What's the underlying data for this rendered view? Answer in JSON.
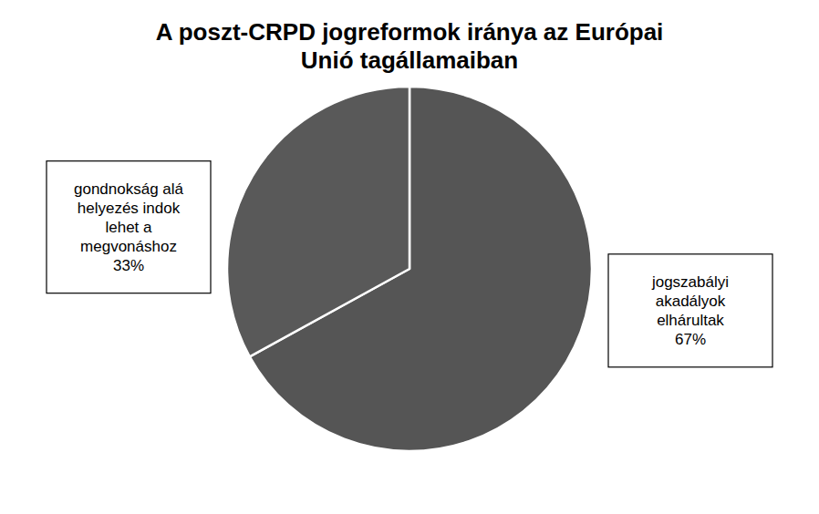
{
  "chart_data": {
    "type": "pie",
    "title": "A poszt-CRPD jogreformok iránya az Európai\nUnió tagállamaiban",
    "categories": [
      "jogszabályi\nakadályok\nelhárultak",
      "gondnokság alá\nhelyezés indok\nlehet a\nmegvonáshoz"
    ],
    "values": [
      67,
      33
    ],
    "value_labels": [
      "67%",
      "33%"
    ],
    "colors": [
      "#555555",
      "#595959"
    ],
    "data_labels": true
  }
}
